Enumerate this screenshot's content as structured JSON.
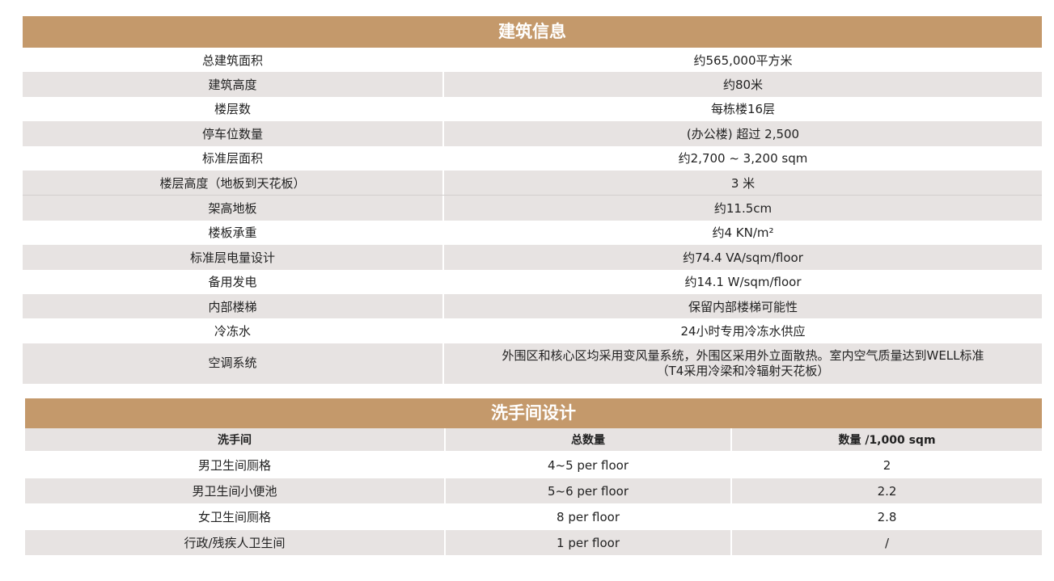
{
  "building": {
    "title": "建筑信息",
    "rows": [
      {
        "label": "总建筑面积",
        "value": "约565,000平方米"
      },
      {
        "label": "建筑高度",
        "value": "约80米"
      },
      {
        "label": "楼层数",
        "value": "每栋楼16层"
      },
      {
        "label": "停车位数量",
        "value": "(办公楼) 超过 2,500"
      },
      {
        "label": "标准层面积",
        "value": "约2,700 ~ 3,200 sqm"
      },
      {
        "label": "楼层高度（地板到天花板）",
        "value": "3 米"
      },
      {
        "label": "架高地板",
        "value": "约11.5cm"
      },
      {
        "label": "楼板承重",
        "value": "约4 KN/m²"
      },
      {
        "label": "标准层电量设计",
        "value": "约74.4 VA/sqm/floor"
      },
      {
        "label": "备用发电",
        "value": "约14.1 W/sqm/floor"
      },
      {
        "label": "内部楼梯",
        "value": "保留内部楼梯可能性"
      },
      {
        "label": "冷冻水",
        "value": "24小时专用冷冻水供应"
      },
      {
        "label": "空调系统",
        "value": "外围区和核心区均采用变风量系统，外围区采用外立面散热。室内空气质量达到WELL标准",
        "value2": "（T4采用冷梁和冷辐射天花板）"
      }
    ]
  },
  "restroom": {
    "title": "洗手间设计",
    "columns": [
      "洗手间",
      "总数量",
      "数量 /1,000 sqm"
    ],
    "rows": [
      [
        "男卫生间厕格",
        "4~5 per floor",
        "2"
      ],
      [
        "男卫生间小便池",
        "5~6 per floor",
        "2.2"
      ],
      [
        "女卫生间厕格",
        "8 per floor",
        "2.8"
      ],
      [
        "行政/残疾人卫生间",
        "1 per floor",
        "/"
      ]
    ]
  },
  "colors": {
    "header": "#c4996b",
    "shade": "#e7e3e2"
  }
}
